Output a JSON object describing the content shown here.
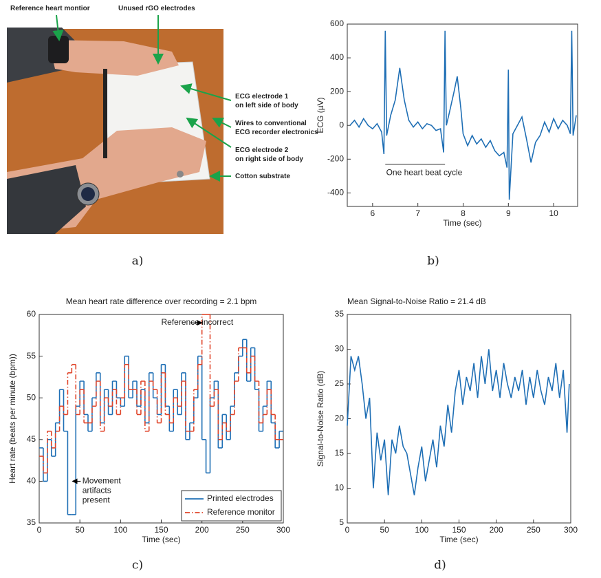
{
  "photo": {
    "labels": [
      [
        "Reference heart montior"
      ],
      [
        "Unused rGO electrodes"
      ],
      [
        "ECG electrode 1",
        "on left side of body"
      ],
      [
        "Wires to conventional",
        "ECG recorder electronics"
      ],
      [
        "ECG electrode 2",
        "on right side of body"
      ],
      [
        "Cotton substrate"
      ]
    ]
  },
  "panel_labels": [
    "a)",
    "b)",
    "c)",
    "d)"
  ],
  "chart_data": [
    {
      "type": "line",
      "xlabel": "Time (sec)",
      "ylabel": "ECG (µV)",
      "x": [
        5.5,
        5.6,
        5.7,
        5.8,
        5.9,
        6.0,
        6.1,
        6.2,
        6.25,
        6.28,
        6.31,
        6.4,
        6.5,
        6.6,
        6.7,
        6.8,
        6.9,
        7.0,
        7.1,
        7.2,
        7.3,
        7.4,
        7.5,
        7.57,
        7.6,
        7.63,
        7.7,
        7.8,
        7.87,
        7.95,
        8.0,
        8.1,
        8.2,
        8.3,
        8.4,
        8.5,
        8.6,
        8.7,
        8.8,
        8.9,
        8.97,
        9.0,
        9.02,
        9.1,
        9.2,
        9.3,
        9.4,
        9.5,
        9.6,
        9.7,
        9.8,
        9.9,
        10.0,
        10.1,
        10.2,
        10.3,
        10.37,
        10.4,
        10.43,
        10.5
      ],
      "values": [
        0,
        30,
        -10,
        40,
        0,
        -20,
        10,
        -40,
        -170,
        560,
        -60,
        60,
        150,
        340,
        150,
        30,
        -10,
        20,
        -20,
        10,
        0,
        -30,
        -20,
        -160,
        560,
        0,
        80,
        200,
        290,
        100,
        -50,
        -120,
        -60,
        -110,
        -80,
        -130,
        -90,
        -150,
        -180,
        -160,
        -250,
        330,
        -440,
        -50,
        0,
        50,
        -80,
        -220,
        -100,
        -60,
        20,
        -40,
        40,
        -20,
        30,
        0,
        -50,
        560,
        -60,
        60
      ],
      "color": "#1f6fb5",
      "xlim": [
        5.44,
        10.53
      ],
      "ylim": [
        -480,
        600
      ],
      "xticks": [
        6,
        7,
        8,
        9,
        10
      ],
      "yticks": [
        -400,
        -200,
        0,
        200,
        400,
        600
      ],
      "annotations": [
        [
          "One heart beat cycle"
        ]
      ]
    },
    {
      "type": "line",
      "title": "Mean heart rate difference over recording = 2.1 bpm",
      "xlabel": "Time (sec)",
      "ylabel": "Heart rate (beats per minute (bpm))",
      "drawstyle": "steps-post",
      "legend": "lower right",
      "x": [
        0,
        5,
        10,
        15,
        20,
        25,
        30,
        35,
        40,
        45,
        50,
        55,
        60,
        65,
        70,
        75,
        80,
        85,
        90,
        95,
        100,
        105,
        110,
        115,
        120,
        125,
        130,
        135,
        140,
        145,
        150,
        155,
        160,
        165,
        170,
        175,
        180,
        185,
        190,
        195,
        200,
        205,
        210,
        215,
        220,
        225,
        230,
        235,
        240,
        245,
        250,
        255,
        260,
        265,
        270,
        275,
        280,
        285,
        290,
        295
      ],
      "series": [
        {
          "name": "Printed electrodes",
          "color": "#1f6fb5",
          "linestyle": "solid",
          "values": [
            44,
            40,
            45,
            43,
            47,
            51,
            46,
            36,
            36,
            49,
            52,
            48,
            46,
            50,
            53,
            47,
            51,
            48,
            52,
            50,
            49,
            55,
            50,
            52,
            49,
            51,
            47,
            53,
            50,
            48,
            54,
            49,
            46,
            51,
            48,
            53,
            45,
            47,
            50,
            55,
            45,
            41,
            50,
            52,
            44,
            48,
            45,
            49,
            53,
            55,
            57,
            52,
            56,
            51,
            46,
            49,
            52,
            47,
            44,
            46
          ]
        },
        {
          "name": "Reference monitor",
          "color": "#e0452a",
          "linestyle": "dash-dot",
          "values": [
            43,
            41,
            46,
            44,
            46,
            49,
            48,
            53,
            54,
            48,
            51,
            47,
            47,
            49,
            52,
            46,
            50,
            49,
            51,
            48,
            50,
            54,
            51,
            51,
            48,
            52,
            46,
            52,
            51,
            47,
            53,
            48,
            47,
            50,
            49,
            52,
            46,
            46,
            51,
            54,
            60,
            60,
            49,
            51,
            45,
            47,
            46,
            48,
            52,
            56,
            56,
            53,
            55,
            52,
            47,
            48,
            51,
            48,
            45,
            45
          ]
        }
      ],
      "xlim": [
        0,
        300
      ],
      "ylim": [
        35,
        60
      ],
      "xticks": [
        0,
        50,
        100,
        150,
        200,
        250,
        300
      ],
      "yticks": [
        35,
        40,
        45,
        50,
        55,
        60
      ],
      "annotations": [
        [
          "Reference incorrect"
        ],
        [
          "Movement",
          "artifacts",
          "present"
        ]
      ]
    },
    {
      "type": "line",
      "title": "Mean Signal-to-Noise Ratio = 21.4 dB",
      "xlabel": "Time (sec)",
      "ylabel": "Signal-to-Noise Ratio (dB)",
      "x": [
        0,
        5,
        10,
        15,
        20,
        25,
        30,
        35,
        40,
        45,
        50,
        55,
        60,
        65,
        70,
        75,
        80,
        85,
        90,
        95,
        100,
        105,
        110,
        115,
        120,
        125,
        130,
        135,
        140,
        145,
        150,
        155,
        160,
        165,
        170,
        175,
        180,
        185,
        190,
        195,
        200,
        205,
        210,
        215,
        220,
        225,
        230,
        235,
        240,
        245,
        250,
        255,
        260,
        265,
        270,
        275,
        280,
        285,
        290,
        295,
        298
      ],
      "values": [
        19,
        29,
        27,
        29,
        25,
        20,
        23,
        10,
        18,
        14,
        17,
        9,
        17,
        15,
        19,
        16,
        15,
        12,
        9,
        13,
        16,
        11,
        14,
        17,
        13,
        19,
        16,
        22,
        18,
        24,
        27,
        22,
        26,
        24,
        28,
        23,
        29,
        25,
        30,
        24,
        27,
        23,
        28,
        25,
        23,
        26,
        24,
        27,
        22,
        26,
        23,
        27,
        24,
        22,
        26,
        24,
        28,
        23,
        27,
        18,
        25
      ],
      "color": "#1f6fb5",
      "xlim": [
        0,
        300
      ],
      "ylim": [
        5,
        35
      ],
      "xticks": [
        0,
        50,
        100,
        150,
        200,
        250,
        300
      ],
      "yticks": [
        5,
        10,
        15,
        20,
        25,
        30,
        35
      ]
    }
  ]
}
